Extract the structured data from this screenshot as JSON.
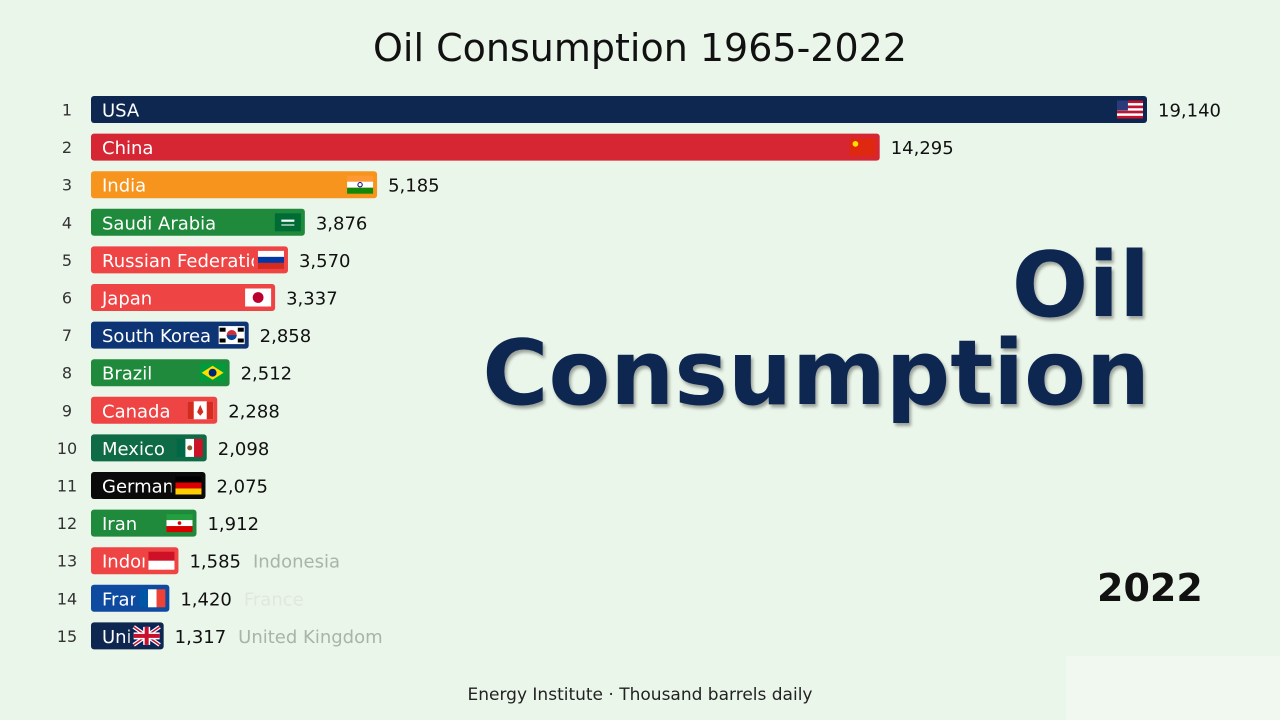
{
  "title": "Oil Consumption 1965-2022",
  "overlay_title_line1": "Oil",
  "overlay_title_line2": "Consumption",
  "year": "2022",
  "source": "Energy Institute · Thousand barrels daily",
  "chart_data": {
    "type": "bar",
    "orientation": "horizontal",
    "title": "Oil Consumption 1965-2022",
    "unit": "Thousand barrels daily",
    "year": "2022",
    "xlim": [
      0,
      19140
    ],
    "rows": [
      {
        "rank": 1,
        "label": "USA",
        "value": 19140,
        "value_text": "19,140",
        "color": "#0d2750",
        "flag": "usa-flag-icon"
      },
      {
        "rank": 2,
        "label": "China",
        "value": 14295,
        "value_text": "14,295",
        "color": "#d62634",
        "flag": "china-flag-icon"
      },
      {
        "rank": 3,
        "label": "India",
        "value": 5185,
        "value_text": "5,185",
        "color": "#f7941d",
        "flag": "india-flag-icon"
      },
      {
        "rank": 4,
        "label": "Saudi Arabia",
        "value": 3876,
        "value_text": "3,876",
        "color": "#1f8a3b",
        "flag": "saudi-arabia-flag-icon"
      },
      {
        "rank": 5,
        "label": "Russian Federation",
        "value": 3570,
        "value_text": "3,570",
        "color": "#ef4444",
        "flag": "russia-flag-icon"
      },
      {
        "rank": 6,
        "label": "Japan",
        "value": 3337,
        "value_text": "3,337",
        "color": "#ef4444",
        "flag": "japan-flag-icon"
      },
      {
        "rank": 7,
        "label": "South Korea",
        "value": 2858,
        "value_text": "2,858",
        "color": "#0d3575",
        "flag": "south-korea-flag-icon"
      },
      {
        "rank": 8,
        "label": "Brazil",
        "value": 2512,
        "value_text": "2,512",
        "color": "#1f8a3b",
        "flag": "brazil-flag-icon"
      },
      {
        "rank": 9,
        "label": "Canada",
        "value": 2288,
        "value_text": "2,288",
        "color": "#ef4444",
        "flag": "canada-flag-icon"
      },
      {
        "rank": 10,
        "label": "Mexico",
        "value": 2098,
        "value_text": "2,098",
        "color": "#0f6b45",
        "flag": "mexico-flag-icon"
      },
      {
        "rank": 11,
        "label": "Germany",
        "value": 2075,
        "value_text": "2,075",
        "color": "#0a0a0a",
        "flag": "germany-flag-icon"
      },
      {
        "rank": 12,
        "label": "Iran",
        "value": 1912,
        "value_text": "1,912",
        "color": "#1f8a3b",
        "flag": "iran-flag-icon"
      },
      {
        "rank": 13,
        "label": "Indonesia",
        "value": 1585,
        "value_text": "1,585",
        "color": "#ef4444",
        "flag": "indonesia-flag-icon",
        "outside_label": "Indonesia"
      },
      {
        "rank": 14,
        "label": "France",
        "value": 1420,
        "value_text": "1,420",
        "color": "#0d4aa0",
        "flag": "france-flag-icon",
        "outside_label": "France"
      },
      {
        "rank": 15,
        "label": "United Kingdom",
        "value": 1317,
        "value_text": "1,317",
        "color": "#0d2750",
        "flag": "uk-flag-icon",
        "outside_label": "United Kingdom"
      }
    ]
  }
}
